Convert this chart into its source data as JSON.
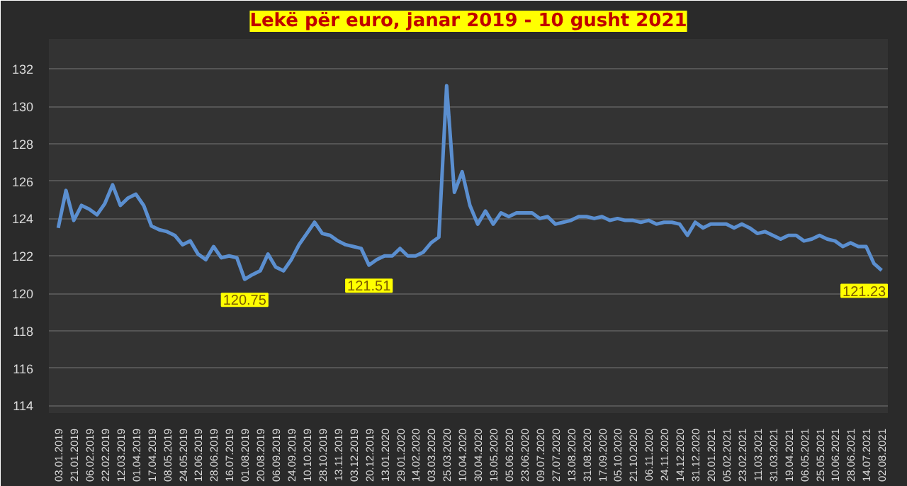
{
  "chart_data": {
    "type": "line",
    "title": "Lekë për euro, janar 2019 - 10 gusht 2021",
    "categories": [
      "03.01.2019",
      null,
      "21.01.2019",
      null,
      "06.02.2019",
      null,
      "22.02.2019",
      null,
      "12.03.2019",
      null,
      "01.04.2019",
      null,
      "17.04.2019",
      null,
      "08.05.2019",
      null,
      "24.05.2019",
      null,
      "12.06.2019",
      null,
      "28.06.2019",
      null,
      "16.07.2019",
      null,
      "01.08.2019",
      null,
      "20.08.2019",
      null,
      "06.09.2019",
      null,
      "24.09.2019",
      null,
      "10.10.2019",
      null,
      "28.10.2019",
      null,
      "13.11.2019",
      null,
      "03.12.2019",
      null,
      "20.12.2019",
      null,
      "13.01.2020",
      null,
      "29.01.2020",
      null,
      "14.02.2020",
      null,
      "03.03.2020",
      null,
      "25.03.2020",
      null,
      "10.04.2020",
      null,
      "30.04.2020",
      null,
      "19.05.2020",
      null,
      "05.06.2020",
      null,
      "23.06.2020",
      null,
      "09.07.2020",
      null,
      "27.07.2020",
      null,
      "13.08.2020",
      null,
      "31.08.2020",
      null,
      "17.09.2020",
      null,
      "05.10.2020",
      null,
      "21.10.2020",
      null,
      "06.11.2020",
      null,
      "24.11.2020",
      null,
      "14.12.2020",
      null,
      "31.12.2020",
      null,
      "20.01.2021",
      null,
      "05.02.2021",
      null,
      "23.02.2021",
      null,
      "11.03.2021",
      null,
      "31.03.2021",
      null,
      "19.04.2021",
      null,
      "06.05.2021",
      null,
      "25.05.2021",
      null,
      "10.06.2021",
      null,
      "28.06.2021",
      null,
      "14.07.2021",
      null,
      "02.08.2021"
    ],
    "values": [
      123.5,
      125.5,
      123.9,
      124.7,
      124.5,
      124.2,
      124.8,
      125.8,
      124.7,
      125.1,
      125.3,
      124.7,
      123.6,
      123.4,
      123.3,
      123.1,
      122.6,
      122.8,
      122.1,
      121.8,
      122.5,
      121.9,
      122.0,
      121.9,
      120.75,
      121.0,
      121.2,
      122.1,
      121.4,
      121.2,
      121.8,
      122.6,
      123.2,
      123.8,
      123.2,
      123.1,
      122.8,
      122.6,
      122.5,
      122.4,
      121.51,
      121.8,
      122.0,
      122.0,
      122.4,
      122.0,
      122.0,
      122.2,
      122.7,
      123.0,
      131.1,
      125.4,
      126.5,
      124.7,
      123.7,
      124.4,
      123.7,
      124.3,
      124.1,
      124.3,
      124.3,
      124.3,
      124.0,
      124.1,
      123.7,
      123.8,
      123.9,
      124.1,
      124.1,
      124.0,
      124.1,
      123.9,
      124.0,
      123.9,
      123.9,
      123.8,
      123.9,
      123.7,
      123.8,
      123.8,
      123.7,
      123.1,
      123.8,
      123.5,
      123.7,
      123.7,
      123.7,
      123.5,
      123.7,
      123.5,
      123.2,
      123.3,
      123.1,
      122.9,
      123.1,
      123.1,
      122.8,
      122.9,
      123.1,
      122.9,
      122.8,
      122.5,
      122.7,
      122.5,
      122.5,
      121.6,
      121.23
    ],
    "color": "#5b8fd0",
    "ylim": [
      113.6,
      133.6
    ],
    "yticks": [
      114,
      116,
      118,
      120,
      122,
      124,
      126,
      128,
      130,
      132
    ],
    "grid": "y",
    "annotations": [
      {
        "text": "120.75",
        "x": "01.08.2019",
        "y": 120.75
      },
      {
        "text": "121.51",
        "x": "20.12.2019",
        "y": 121.51
      },
      {
        "text": "121.23",
        "x": "02.08.2021",
        "y": 121.23
      }
    ]
  }
}
